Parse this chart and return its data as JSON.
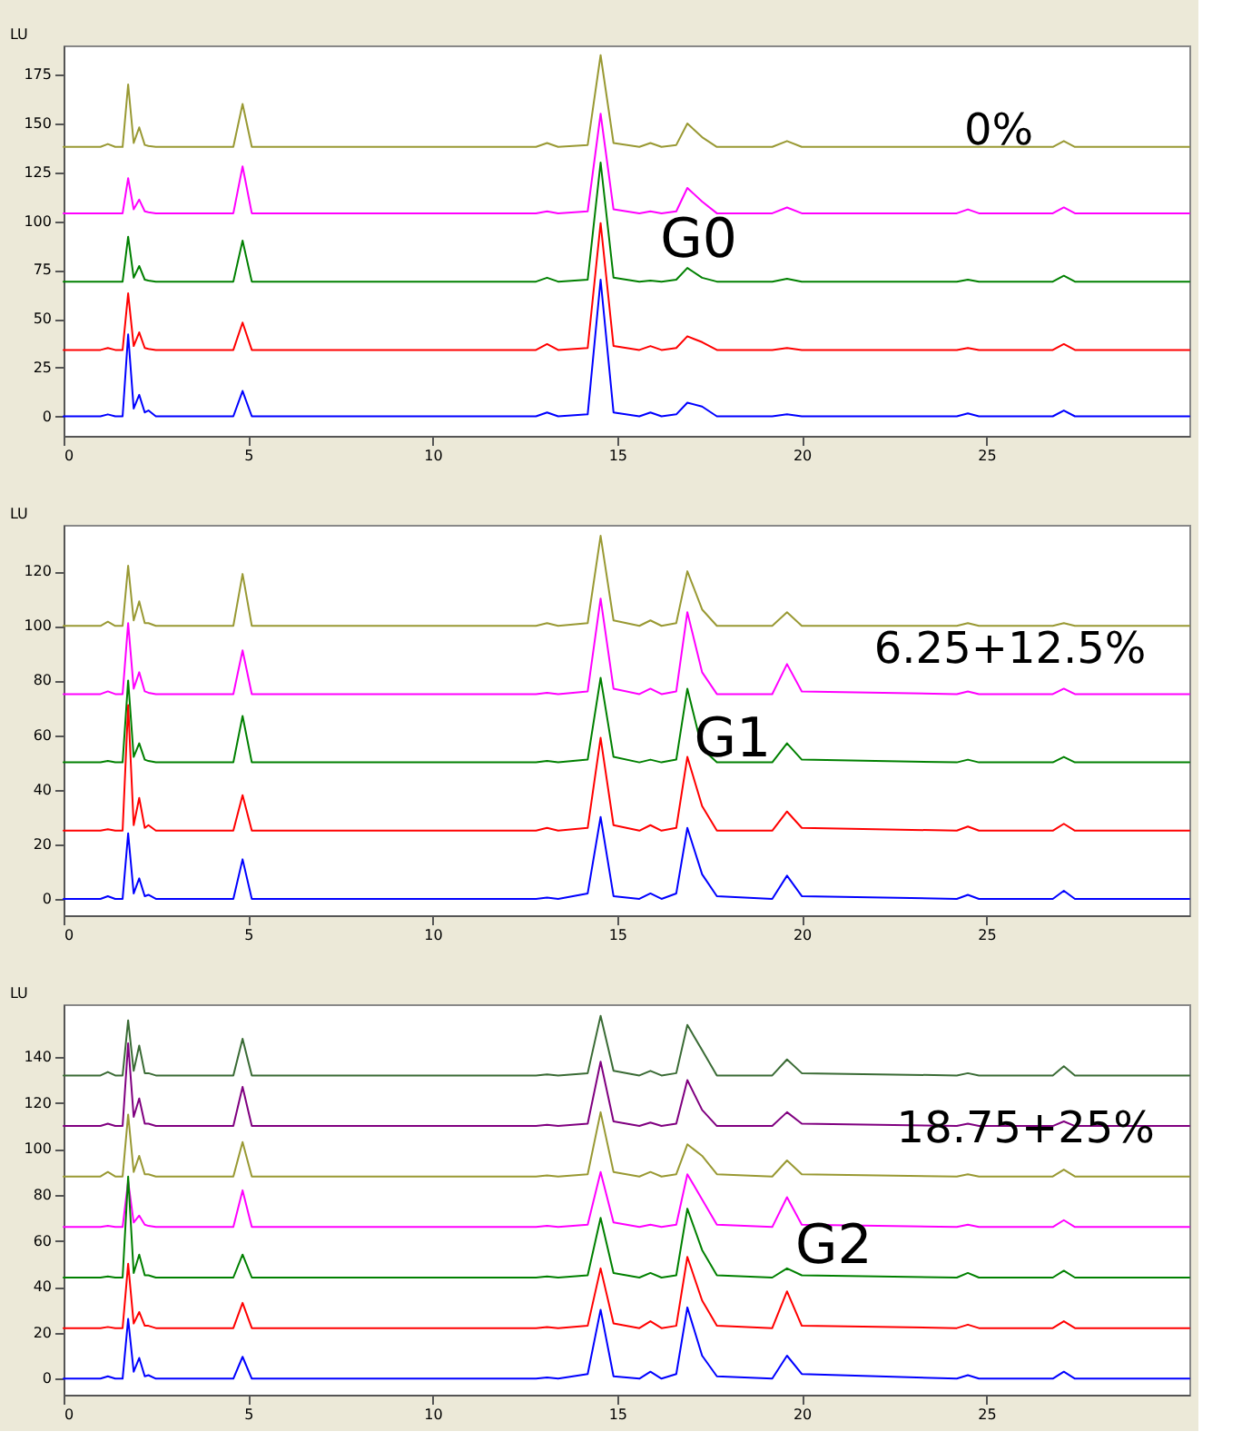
{
  "chart_data": [
    {
      "type": "line",
      "ylabel": "LU",
      "annotations": [
        "0%",
        "G0"
      ],
      "xlim": [
        0,
        30.5
      ],
      "xticks": [
        0,
        5,
        10,
        15,
        20,
        25
      ],
      "ylim": [
        -10,
        190
      ],
      "yticks": [
        0,
        25,
        50,
        75,
        100,
        125,
        150,
        175
      ],
      "x": [
        0,
        1.0,
        1.2,
        1.4,
        1.6,
        1.75,
        1.9,
        2.05,
        2.2,
        2.3,
        2.5,
        4.6,
        4.85,
        5.1,
        12.8,
        13.1,
        13.4,
        14.2,
        14.55,
        14.9,
        15.6,
        15.9,
        16.2,
        16.6,
        16.9,
        17.3,
        17.7,
        19.2,
        19.6,
        20.0,
        24.2,
        24.5,
        24.8,
        26.8,
        27.1,
        27.4,
        30.5
      ],
      "series": [
        {
          "color": "#999933",
          "values": [
            138,
            138,
            139.5,
            138,
            138,
            170,
            140,
            148,
            139,
            138.5,
            138,
            138,
            160,
            138,
            138,
            140,
            138,
            139,
            185,
            140,
            138,
            140,
            138,
            139,
            150,
            143,
            138,
            138,
            141,
            138,
            138,
            138,
            138,
            138,
            141,
            138,
            138
          ]
        },
        {
          "color": "#ff00ff",
          "values": [
            104,
            104,
            104,
            104,
            104,
            122,
            106,
            111,
            105,
            104.5,
            104,
            104,
            128,
            104,
            104,
            105,
            104,
            105,
            155,
            106,
            104,
            105,
            104,
            105,
            117,
            110,
            104,
            104,
            107,
            104,
            104,
            106,
            104,
            104,
            107,
            104,
            104
          ]
        },
        {
          "color": "#008000",
          "values": [
            69,
            69,
            69,
            69,
            69,
            92,
            71,
            77,
            70,
            69.5,
            69,
            69,
            90,
            69,
            69,
            71,
            69,
            70,
            130,
            71,
            69,
            69.5,
            69,
            70,
            76,
            71,
            69,
            69,
            70.5,
            69,
            69,
            70,
            69,
            69,
            72,
            69,
            69
          ]
        },
        {
          "color": "#ff0000",
          "values": [
            34,
            34,
            35,
            34,
            34,
            63,
            36,
            43,
            35,
            34.5,
            34,
            34,
            48,
            34,
            34,
            37,
            34,
            35,
            99,
            36,
            34,
            36,
            34,
            35,
            41,
            38,
            34,
            34,
            35,
            34,
            34,
            35,
            34,
            34,
            37,
            34,
            34
          ]
        },
        {
          "color": "#0000ff",
          "values": [
            0,
            0,
            1,
            0,
            0,
            42,
            4,
            11,
            2,
            3,
            0,
            0,
            13,
            0,
            0,
            2,
            0,
            1,
            70,
            2,
            0,
            2,
            0,
            1,
            7,
            5,
            0,
            0,
            1,
            0,
            0,
            1.5,
            0,
            0,
            3,
            0,
            0
          ]
        }
      ]
    },
    {
      "type": "line",
      "ylabel": "LU",
      "annotations": [
        "6.25+12.5%",
        "G1"
      ],
      "xlim": [
        0,
        30.5
      ],
      "xticks": [
        0,
        5,
        10,
        15,
        20,
        25
      ],
      "ylim": [
        -6,
        137
      ],
      "yticks": [
        0,
        20,
        40,
        60,
        80,
        100,
        120
      ],
      "x": [
        0,
        1.0,
        1.2,
        1.4,
        1.6,
        1.75,
        1.9,
        2.05,
        2.2,
        2.3,
        2.5,
        4.6,
        4.85,
        5.1,
        12.8,
        13.1,
        13.4,
        14.2,
        14.55,
        14.9,
        15.6,
        15.9,
        16.2,
        16.6,
        16.9,
        17.3,
        17.7,
        19.2,
        19.6,
        20.0,
        24.2,
        24.5,
        24.8,
        26.8,
        27.1,
        27.4,
        30.5
      ],
      "series": [
        {
          "color": "#999933",
          "values": [
            100,
            100,
            101.5,
            100,
            100,
            122,
            102,
            109,
            101,
            101,
            100,
            100,
            119,
            100,
            100,
            101,
            100,
            101,
            133,
            102,
            100,
            102,
            100,
            101,
            120,
            106,
            100,
            100,
            105,
            100,
            100,
            101,
            100,
            100,
            101,
            100,
            100
          ]
        },
        {
          "color": "#ff00ff",
          "values": [
            75,
            75,
            76,
            75,
            75,
            101,
            77,
            83,
            76,
            75.5,
            75,
            75,
            91,
            75,
            75,
            75.5,
            75,
            76,
            110,
            77,
            75,
            77,
            75,
            76,
            105,
            83,
            75,
            75,
            86,
            76,
            75,
            76,
            75,
            75,
            77,
            75,
            75
          ]
        },
        {
          "color": "#008000",
          "values": [
            50,
            50,
            50.5,
            50,
            50,
            80,
            52,
            57,
            51,
            50.5,
            50,
            50,
            67,
            50,
            50,
            50.5,
            50,
            51,
            81,
            52,
            50,
            51,
            50,
            51,
            77,
            55,
            50,
            50,
            57,
            51,
            50,
            51,
            50,
            50,
            52,
            50,
            50
          ]
        },
        {
          "color": "#ff0000",
          "values": [
            25,
            25,
            25.5,
            25,
            25,
            71,
            27,
            37,
            26,
            27,
            25,
            25,
            38,
            25,
            25,
            26,
            25,
            26,
            59,
            27,
            25,
            27,
            25,
            26,
            52,
            34,
            25,
            25,
            32,
            26,
            25,
            26.5,
            25,
            25,
            27.5,
            25,
            25
          ]
        },
        {
          "color": "#0000ff",
          "values": [
            0,
            0,
            1,
            0,
            0,
            24,
            2,
            7.5,
            1,
            1.5,
            0,
            0,
            14.5,
            0,
            0,
            0.5,
            0,
            2,
            30,
            1,
            0,
            2,
            0,
            2,
            26,
            9,
            1,
            0,
            8.5,
            1,
            0,
            1.5,
            0,
            0,
            3,
            0,
            0
          ]
        }
      ]
    },
    {
      "type": "line",
      "ylabel": "LU",
      "annotations": [
        "18.75+25%",
        "G2"
      ],
      "xlim": [
        0,
        30.5
      ],
      "xticks": [
        0,
        5,
        10,
        15,
        20,
        25
      ],
      "ylim": [
        -7,
        163
      ],
      "yticks": [
        0,
        20,
        40,
        60,
        80,
        100,
        120,
        140
      ],
      "x": [
        0,
        1.0,
        1.2,
        1.4,
        1.6,
        1.75,
        1.9,
        2.05,
        2.2,
        2.3,
        2.5,
        4.6,
        4.85,
        5.1,
        12.8,
        13.1,
        13.4,
        14.2,
        14.55,
        14.9,
        15.6,
        15.9,
        16.2,
        16.6,
        16.9,
        17.3,
        17.7,
        19.2,
        19.6,
        20.0,
        24.2,
        24.5,
        24.8,
        26.8,
        27.1,
        27.4,
        30.5
      ],
      "series": [
        {
          "color": "#3a6b35",
          "values": [
            132,
            132,
            133.5,
            132,
            132,
            156,
            134,
            145,
            133,
            133,
            132,
            132,
            148,
            132,
            132,
            132.5,
            132,
            133,
            158,
            134,
            132,
            134,
            132,
            133,
            154,
            143,
            132,
            132,
            139,
            133,
            132,
            133,
            132,
            132,
            136,
            132,
            132
          ]
        },
        {
          "color": "#800080",
          "values": [
            110,
            110,
            111,
            110,
            110,
            146,
            114,
            122,
            111,
            111,
            110,
            110,
            127,
            110,
            110,
            110.5,
            110,
            111,
            138,
            112,
            110,
            111.5,
            110,
            111,
            130,
            117,
            110,
            110,
            116,
            111,
            110,
            111,
            110,
            110,
            112,
            110,
            110
          ]
        },
        {
          "color": "#999933",
          "values": [
            88,
            88,
            90,
            88,
            88,
            115,
            90,
            97,
            89,
            89,
            88,
            88,
            103,
            88,
            88,
            88.5,
            88,
            89,
            116,
            90,
            88,
            90,
            88,
            89,
            102,
            97,
            89,
            88,
            95,
            89,
            88,
            89,
            88,
            88,
            91,
            88,
            88
          ]
        },
        {
          "color": "#ff00ff",
          "values": [
            66,
            66,
            66.5,
            66,
            66,
            86,
            68,
            71,
            67,
            66.5,
            66,
            66,
            82,
            66,
            66,
            66.5,
            66,
            67,
            90,
            68,
            66,
            67,
            66,
            67,
            89,
            78,
            67,
            66,
            79,
            67,
            66,
            67,
            66,
            66,
            69,
            66,
            66
          ]
        },
        {
          "color": "#008000",
          "values": [
            44,
            44,
            44.5,
            44,
            44,
            88,
            46,
            54,
            45,
            45,
            44,
            44,
            54,
            44,
            44,
            44.5,
            44,
            45,
            70,
            46,
            44,
            46,
            44,
            45,
            74,
            56,
            45,
            44,
            48,
            45,
            44,
            46,
            44,
            44,
            47,
            44,
            44
          ]
        },
        {
          "color": "#ff0000",
          "values": [
            22,
            22,
            22.5,
            22,
            22,
            50,
            24,
            29,
            23,
            23,
            22,
            22,
            33,
            22,
            22,
            22.5,
            22,
            23,
            48,
            24,
            22,
            25,
            22,
            23,
            53,
            34,
            23,
            22,
            38,
            23,
            22,
            23.5,
            22,
            22,
            25,
            22,
            22
          ]
        },
        {
          "color": "#0000ff",
          "values": [
            0,
            0,
            1,
            0,
            0,
            26,
            3,
            9,
            1,
            1.5,
            0,
            0,
            9.5,
            0,
            0,
            0.5,
            0,
            2,
            30,
            1,
            0,
            3,
            0,
            2,
            31,
            10,
            1,
            0,
            10,
            2,
            0,
            1.5,
            0,
            0,
            3,
            0,
            0
          ]
        }
      ]
    }
  ]
}
